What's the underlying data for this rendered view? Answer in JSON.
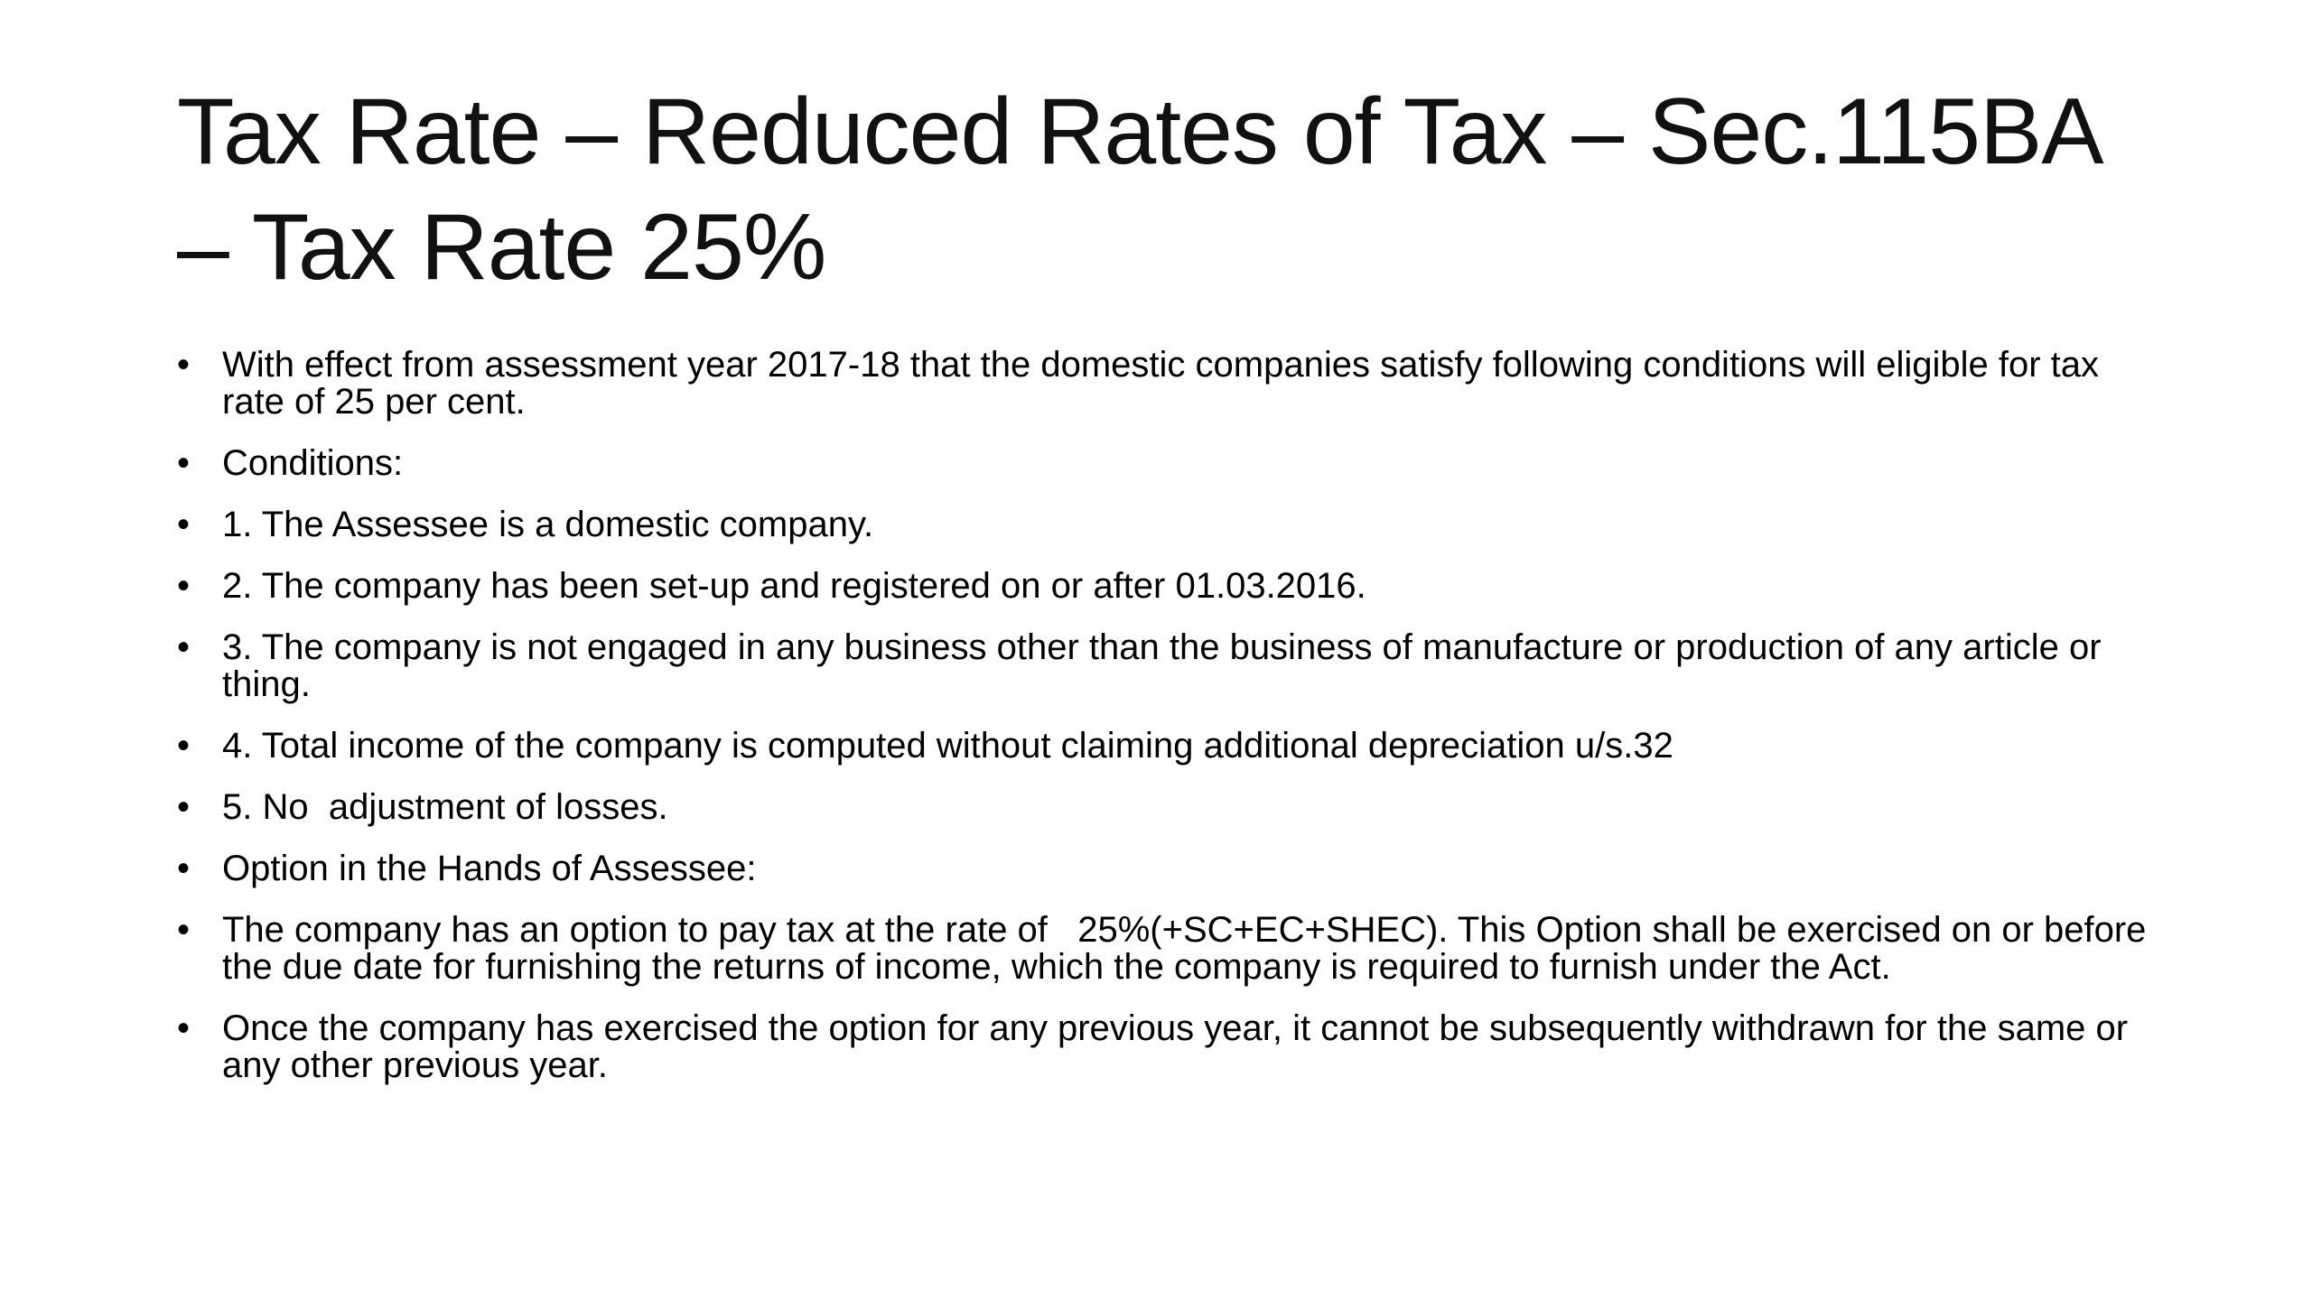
{
  "slide": {
    "title": "Tax Rate – Reduced Rates of Tax – Sec.115BA – Tax Rate 25%",
    "bullet_char": "•",
    "bullets": [
      "With effect from assessment year 2017-18 that the domestic companies satisfy following conditions will eligible for tax rate of 25 per cent.",
      "Conditions:",
      "1. The Assessee is a domestic company.",
      "2. The company has been set-up and registered on or after 01.03.2016.",
      "3. The company is not engaged in any business other than the business of manufacture or production of any article or thing.",
      "4. Total income of the company is computed without claiming additional depreciation u/s.32",
      "5. No  adjustment of losses.",
      "Option in the Hands of Assessee:",
      "The company has an option to pay tax at the rate of   25%(+SC+EC+SHEC). This Option shall be exercised on or before the due date for furnishing the returns of income, which the company is required to furnish under the Act.",
      "Once the company has exercised the option for any previous year, it cannot be subsequently withdrawn for the same or any other previous year."
    ]
  }
}
